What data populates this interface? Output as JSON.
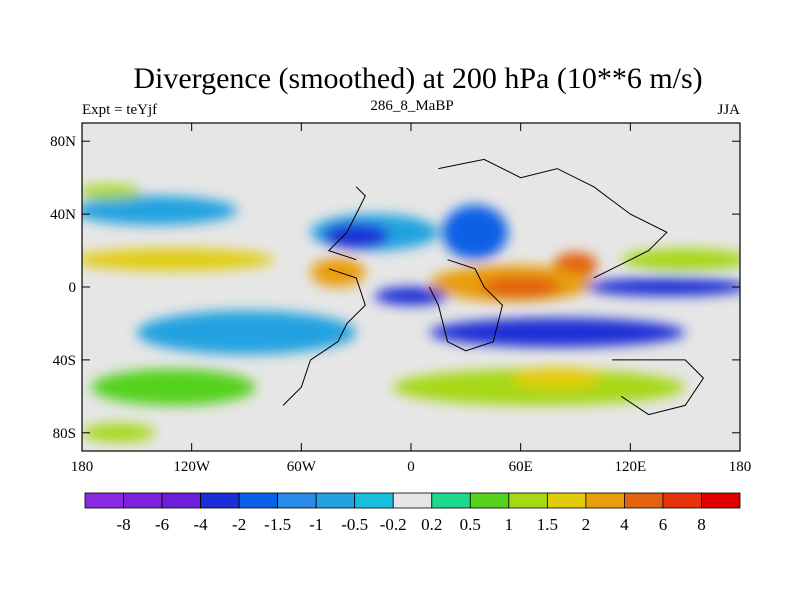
{
  "chart_data": {
    "type": "heatmap",
    "title": "Divergence (smoothed) at 200 hPa (10**6 m/s)",
    "left_label": "Expt = teYjf",
    "center_label": "286_8_MaBP",
    "right_label": "JJA",
    "x_ticks": [
      {
        "value": -180,
        "label": "180"
      },
      {
        "value": -120,
        "label": "120W"
      },
      {
        "value": -60,
        "label": "60W"
      },
      {
        "value": 0,
        "label": "0"
      },
      {
        "value": 60,
        "label": "60E"
      },
      {
        "value": 120,
        "label": "120E"
      },
      {
        "value": 180,
        "label": "180"
      }
    ],
    "y_ticks": [
      {
        "value": 80,
        "label": "80N"
      },
      {
        "value": 40,
        "label": "40N"
      },
      {
        "value": 0,
        "label": "0"
      },
      {
        "value": -40,
        "label": "40S"
      },
      {
        "value": -80,
        "label": "80S"
      }
    ],
    "xlim": [
      -180,
      180
    ],
    "ylim": [
      -90,
      90
    ],
    "colorbar": {
      "boundaries": [
        "-8",
        "-6",
        "-4",
        "-2",
        "-1.5",
        "-1",
        "-0.5",
        "-0.2",
        "0.2",
        "0.5",
        "1",
        "1.5",
        "2",
        "4",
        "6",
        "8"
      ],
      "colors": [
        "#8a2be2",
        "#7a22dc",
        "#6c1fd6",
        "#1c2fd6",
        "#0a60e6",
        "#2a8ce8",
        "#22a2e0",
        "#18bede",
        "#e6e6e6",
        "#1ed98c",
        "#54d21c",
        "#a6d814",
        "#e2cc0a",
        "#e89e0a",
        "#e2620e",
        "#e8320a",
        "#e00000"
      ]
    },
    "regions": [
      {
        "name": "n-hem-high-neg-band",
        "lon": -140,
        "lat": 42,
        "rx": 45,
        "ry": 8,
        "value": -1
      },
      {
        "name": "n-hem-band-pos-w",
        "lon": -165,
        "lat": 52,
        "rx": 18,
        "ry": 4,
        "value": 1
      },
      {
        "name": "tropical-pos-band-w",
        "lon": -130,
        "lat": 15,
        "rx": 55,
        "ry": 6,
        "value": 1.5
      },
      {
        "name": "tropical-pos-band-e",
        "lon": 150,
        "lat": 15,
        "rx": 35,
        "ry": 6,
        "value": 1
      },
      {
        "name": "atlantic-conv",
        "lon": -20,
        "lat": 30,
        "rx": 35,
        "ry": 10,
        "value": -1
      },
      {
        "name": "atlantic-strong-conv",
        "lon": -30,
        "lat": 28,
        "rx": 18,
        "ry": 7,
        "value": -4
      },
      {
        "name": "europe-conv",
        "lon": 35,
        "lat": 30,
        "rx": 18,
        "ry": 15,
        "value": -2
      },
      {
        "name": "asia-div-max",
        "lon": 90,
        "lat": 12,
        "rx": 12,
        "ry": 7,
        "value": 4
      },
      {
        "name": "africa-div",
        "lon": 55,
        "lat": 2,
        "rx": 45,
        "ry": 10,
        "value": 2
      },
      {
        "name": "africa-div-core",
        "lon": 60,
        "lat": 0,
        "rx": 22,
        "ry": 6,
        "value": 4
      },
      {
        "name": "south-america-div",
        "lon": -40,
        "lat": 8,
        "rx": 15,
        "ry": 8,
        "value": 2
      },
      {
        "name": "equatorial-conv-e",
        "lon": 140,
        "lat": 0,
        "rx": 45,
        "ry": 5,
        "value": -4
      },
      {
        "name": "equatorial-conv-atl",
        "lon": 0,
        "lat": -5,
        "rx": 20,
        "ry": 5,
        "value": -4
      },
      {
        "name": "south-conv-band",
        "lon": 80,
        "lat": -25,
        "rx": 70,
        "ry": 8,
        "value": -4
      },
      {
        "name": "pacific-s-conv",
        "lon": -90,
        "lat": -25,
        "rx": 60,
        "ry": 12,
        "value": -1
      },
      {
        "name": "south-div-band",
        "lon": 70,
        "lat": -55,
        "rx": 80,
        "ry": 10,
        "value": 1
      },
      {
        "name": "south-div-core",
        "lon": 80,
        "lat": -50,
        "rx": 25,
        "ry": 6,
        "value": 1.5
      },
      {
        "name": "s-pacific-div",
        "lon": -130,
        "lat": -55,
        "rx": 45,
        "ry": 10,
        "value": 0.5
      },
      {
        "name": "s-far-div",
        "lon": -160,
        "lat": -80,
        "rx": 20,
        "ry": 5,
        "value": 1
      }
    ],
    "coastlines": [
      {
        "name": "north-america",
        "points": [
          [
            -30,
            15
          ],
          [
            -45,
            20
          ],
          [
            -35,
            30
          ],
          [
            -30,
            40
          ],
          [
            -25,
            50
          ],
          [
            -30,
            55
          ]
        ]
      },
      {
        "name": "south-america",
        "points": [
          [
            -45,
            10
          ],
          [
            -30,
            5
          ],
          [
            -25,
            -10
          ],
          [
            -35,
            -20
          ],
          [
            -40,
            -30
          ],
          [
            -55,
            -40
          ],
          [
            -60,
            -55
          ],
          [
            -70,
            -65
          ]
        ]
      },
      {
        "name": "africa",
        "points": [
          [
            20,
            15
          ],
          [
            35,
            10
          ],
          [
            40,
            0
          ],
          [
            50,
            -10
          ],
          [
            45,
            -30
          ],
          [
            30,
            -35
          ],
          [
            20,
            -30
          ],
          [
            15,
            -10
          ],
          [
            10,
            0
          ]
        ]
      },
      {
        "name": "eurasia",
        "points": [
          [
            15,
            65
          ],
          [
            40,
            70
          ],
          [
            60,
            60
          ],
          [
            80,
            65
          ],
          [
            100,
            55
          ],
          [
            120,
            40
          ],
          [
            140,
            30
          ],
          [
            130,
            20
          ],
          [
            110,
            10
          ],
          [
            100,
            5
          ]
        ]
      },
      {
        "name": "australia",
        "points": [
          [
            110,
            -40
          ],
          [
            150,
            -40
          ],
          [
            160,
            -50
          ],
          [
            150,
            -65
          ],
          [
            130,
            -70
          ],
          [
            115,
            -60
          ]
        ]
      }
    ]
  }
}
